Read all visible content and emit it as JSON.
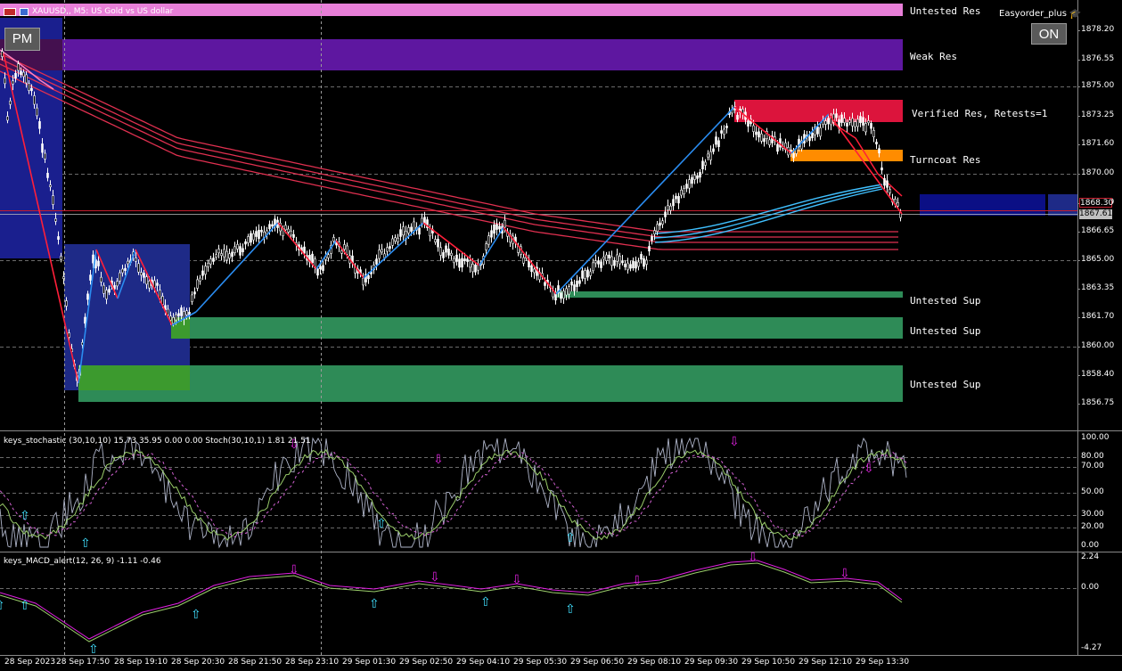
{
  "chart": {
    "symbol_title": "XAUUSD,, M5: US Gold vs US dollar",
    "ea_name": "Easyorder_plus",
    "pm_button": "PM",
    "on_button": "ON"
  },
  "zones": [
    {
      "label": "Untested Res",
      "color": "#e87fd8"
    },
    {
      "label": "Weak Res",
      "color": "#5e17a0"
    },
    {
      "label": "Verified Res, Retests=1",
      "color": "#dc143c"
    },
    {
      "label": "Turncoat Res",
      "color": "#ff8c00"
    },
    {
      "label": "Untested Sup",
      "color": "#2e8b57"
    },
    {
      "label": "Untested Sup",
      "color": "#2e8b57"
    },
    {
      "label": "Untested Sup",
      "color": "#2e8b57"
    }
  ],
  "price_axis": [
    "1878.20",
    "1876.55",
    "1875.00",
    "1873.25",
    "1871.60",
    "1870.00",
    "1868.30",
    "1866.65",
    "1865.00",
    "1863.35",
    "1861.70",
    "1860.00",
    "1858.40",
    "1856.75"
  ],
  "price_highlights": {
    "bid": "1867.61",
    "ask_line": "1868.30"
  },
  "stoch": {
    "title": "keys_stochastic (30,10,10) 15.73 35.95 0.00 0.00 Stoch(30,10,1) 1.81 21.51",
    "levels": [
      "100.00",
      "80.00",
      "70.00",
      "50.00",
      "30.00",
      "20.00",
      "0.00"
    ]
  },
  "macd": {
    "title": "keys_MACD_alert(12, 26, 9) -1.11 -0.46",
    "levels": [
      "2.24",
      "0.00",
      "-4.27"
    ]
  },
  "time_axis": [
    "28 Sep 2023",
    "28 Sep 17:50",
    "28 Sep 19:10",
    "28 Sep 20:30",
    "28 Sep 21:50",
    "28 Sep 23:10",
    "29 Sep 01:30",
    "29 Sep 02:50",
    "29 Sep 04:10",
    "29 Sep 05:30",
    "29 Sep 06:50",
    "29 Sep 08:10",
    "29 Sep 09:30",
    "29 Sep 10:50",
    "29 Sep 12:10",
    "29 Sep 13:30"
  ],
  "colors": {
    "background": "#000000",
    "candles": "#ffffff",
    "zigzag_up": "#1e90ff",
    "zigzag_down": "#ff1f3a",
    "ma": "#dc143c",
    "ma_cyan": "#00bfff",
    "grid": "#5a5a5a"
  }
}
